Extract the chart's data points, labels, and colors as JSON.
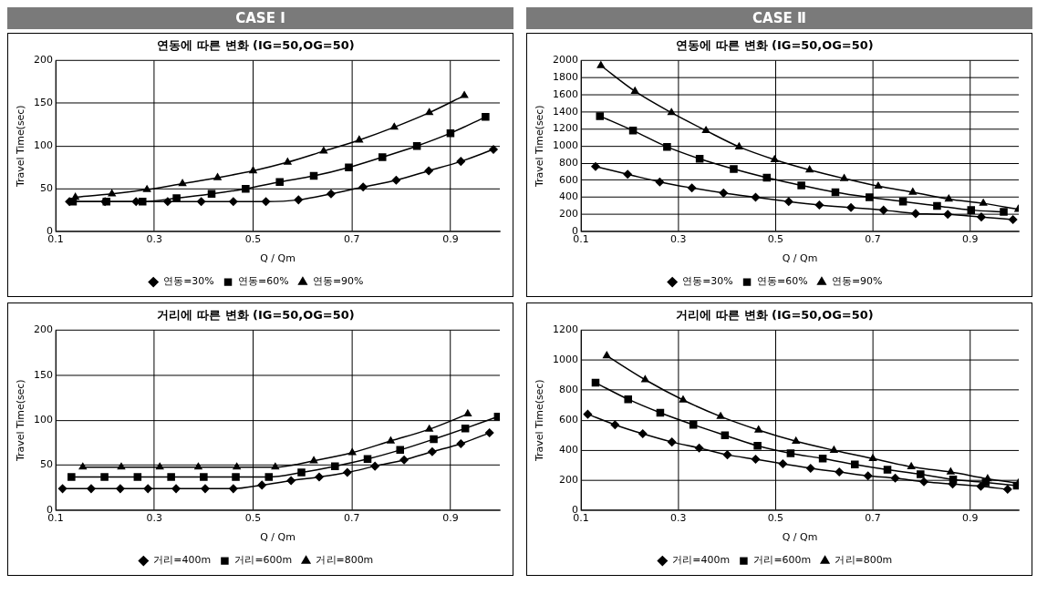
{
  "chart_data": [
    {
      "type": "line",
      "annotations": [
        "CASE I"
      ],
      "title": "연동에 따른 변화 (IG=50,OG=50)",
      "xlabel": "Q / Qm",
      "ylabel": "Travel Time(sec)",
      "xlim": [
        0.1,
        1.0
      ],
      "xticks": [
        0.1,
        0.3,
        0.5,
        0.7,
        0.9
      ],
      "ylim": [
        0,
        200
      ],
      "yticks": [
        0,
        50,
        100,
        150,
        200
      ],
      "grid": true,
      "legend": "bottom",
      "line_style": "solid",
      "series": [
        {
          "name": "연동=30%",
          "color": "#000000",
          "marker": "diamond",
          "x": [
            0.128,
            0.2,
            0.263,
            0.327,
            0.395,
            0.46,
            0.526,
            0.592,
            0.658,
            0.723,
            0.79,
            0.856,
            0.921,
            0.987
          ],
          "values": [
            35,
            35,
            35,
            35,
            35,
            35,
            35,
            37,
            44,
            52,
            60,
            71,
            82,
            96
          ]
        },
        {
          "name": "연동=60%",
          "color": "#000000",
          "marker": "square",
          "x": [
            0.135,
            0.203,
            0.276,
            0.345,
            0.416,
            0.485,
            0.554,
            0.623,
            0.694,
            0.762,
            0.832,
            0.9,
            0.971
          ],
          "values": [
            35,
            35,
            35,
            39,
            44,
            50,
            58,
            65,
            75,
            87,
            100,
            115,
            134
          ]
        },
        {
          "name": "연동=90%",
          "color": "#000000",
          "marker": "triangle",
          "x": [
            0.14,
            0.214,
            0.285,
            0.357,
            0.428,
            0.5,
            0.57,
            0.643,
            0.715,
            0.786,
            0.857,
            0.928
          ],
          "values": [
            40,
            44,
            49,
            56,
            63,
            71,
            81,
            94,
            107,
            122,
            139,
            159
          ]
        }
      ]
    },
    {
      "type": "line",
      "annotations": [
        "CASE Ⅱ"
      ],
      "title": "연동에 따른 변화 (IG=50,OG=50)",
      "xlabel": "Q / Qm",
      "ylabel": "Travel Time(sec)",
      "xlim": [
        0.1,
        1.0
      ],
      "xticks": [
        0.1,
        0.3,
        0.5,
        0.7,
        0.9
      ],
      "ylim": [
        0,
        2000
      ],
      "yticks": [
        0,
        200,
        400,
        600,
        800,
        1000,
        1200,
        1400,
        1600,
        1800,
        2000
      ],
      "grid": true,
      "legend": "bottom",
      "line_style": "solid",
      "series": [
        {
          "name": "연동=30%",
          "color": "#000000",
          "marker": "diamond",
          "x": [
            0.13,
            0.196,
            0.262,
            0.328,
            0.393,
            0.459,
            0.527,
            0.59,
            0.655,
            0.722,
            0.788,
            0.854,
            0.923,
            0.988
          ],
          "values": [
            760,
            670,
            580,
            510,
            450,
            400,
            350,
            310,
            280,
            250,
            210,
            200,
            170,
            140
          ]
        },
        {
          "name": "연동=60%",
          "color": "#000000",
          "marker": "square",
          "x": [
            0.139,
            0.207,
            0.277,
            0.344,
            0.414,
            0.482,
            0.553,
            0.623,
            0.693,
            0.762,
            0.832,
            0.902,
            0.969
          ],
          "values": [
            1350,
            1180,
            990,
            850,
            730,
            630,
            540,
            460,
            400,
            350,
            300,
            250,
            230
          ]
        },
        {
          "name": "연동=90%",
          "color": "#000000",
          "marker": "triangle",
          "x": [
            0.141,
            0.211,
            0.286,
            0.357,
            0.425,
            0.498,
            0.57,
            0.641,
            0.711,
            0.782,
            0.856,
            0.927,
            0.999
          ],
          "values": [
            1940,
            1640,
            1390,
            1180,
            990,
            840,
            720,
            620,
            530,
            460,
            380,
            330,
            260
          ]
        }
      ]
    },
    {
      "type": "line",
      "title": "거리에 따른 변화 (IG=50,OG=50)",
      "xlabel": "Q / Qm",
      "ylabel": "Travel Time(sec)",
      "xlim": [
        0.1,
        1.0
      ],
      "xticks": [
        0.1,
        0.3,
        0.5,
        0.7,
        0.9
      ],
      "ylim": [
        0,
        200
      ],
      "yticks": [
        0,
        50,
        100,
        150,
        200
      ],
      "grid": true,
      "legend": "bottom",
      "line_style": "solid",
      "series": [
        {
          "name": "거리=400m",
          "color": "#000000",
          "marker": "diamond",
          "x": [
            0.114,
            0.172,
            0.231,
            0.287,
            0.344,
            0.403,
            0.46,
            0.518,
            0.577,
            0.634,
            0.691,
            0.747,
            0.806,
            0.863,
            0.921,
            0.979
          ],
          "values": [
            24,
            24,
            24,
            24,
            24,
            24,
            24,
            28,
            33,
            37,
            42,
            49,
            56,
            65,
            74,
            86
          ]
        },
        {
          "name": "거리=600m",
          "color": "#000000",
          "marker": "square",
          "x": [
            0.132,
            0.199,
            0.266,
            0.334,
            0.4,
            0.465,
            0.532,
            0.598,
            0.666,
            0.732,
            0.798,
            0.866,
            0.93,
            0.996
          ],
          "values": [
            37,
            37,
            37,
            37,
            37,
            37,
            37,
            42,
            49,
            57,
            67,
            79,
            91,
            104
          ]
        },
        {
          "name": "거리=800m",
          "color": "#000000",
          "marker": "triangle",
          "x": [
            0.155,
            0.233,
            0.311,
            0.389,
            0.467,
            0.545,
            0.623,
            0.701,
            0.779,
            0.857,
            0.935
          ],
          "values": [
            48,
            48,
            48,
            48,
            48,
            48,
            55,
            64,
            77,
            90,
            107
          ]
        }
      ]
    },
    {
      "type": "line",
      "title": "거리에 따른 변화 (IG=50,OG=50)",
      "xlabel": "Q / Qm",
      "ylabel": "Travel Time(sec)",
      "xlim": [
        0.1,
        1.0
      ],
      "xticks": [
        0.1,
        0.3,
        0.5,
        0.7,
        0.9
      ],
      "ylim": [
        0,
        1200
      ],
      "yticks": [
        0,
        200,
        400,
        600,
        800,
        1000,
        1200
      ],
      "grid": true,
      "legend": "bottom",
      "line_style": "solid",
      "series": [
        {
          "name": "거리=400m",
          "color": "#000000",
          "marker": "diamond",
          "x": [
            0.114,
            0.17,
            0.227,
            0.287,
            0.343,
            0.401,
            0.459,
            0.515,
            0.572,
            0.631,
            0.69,
            0.746,
            0.805,
            0.864,
            0.922,
            0.977
          ],
          "values": [
            640,
            570,
            510,
            455,
            415,
            370,
            340,
            310,
            280,
            255,
            230,
            215,
            190,
            175,
            160,
            140
          ]
        },
        {
          "name": "거리=600m",
          "color": "#000000",
          "marker": "square",
          "x": [
            0.13,
            0.197,
            0.263,
            0.331,
            0.396,
            0.463,
            0.531,
            0.597,
            0.663,
            0.73,
            0.798,
            0.865,
            0.932,
            0.996
          ],
          "values": [
            850,
            740,
            650,
            570,
            500,
            430,
            380,
            345,
            305,
            270,
            240,
            205,
            185,
            165
          ]
        },
        {
          "name": "거리=800m",
          "color": "#000000",
          "marker": "triangle",
          "x": [
            0.153,
            0.232,
            0.31,
            0.387,
            0.465,
            0.542,
            0.62,
            0.7,
            0.779,
            0.86,
            0.936,
            0.999
          ],
          "values": [
            1030,
            870,
            735,
            625,
            535,
            460,
            400,
            345,
            290,
            255,
            210,
            180
          ]
        }
      ]
    }
  ]
}
